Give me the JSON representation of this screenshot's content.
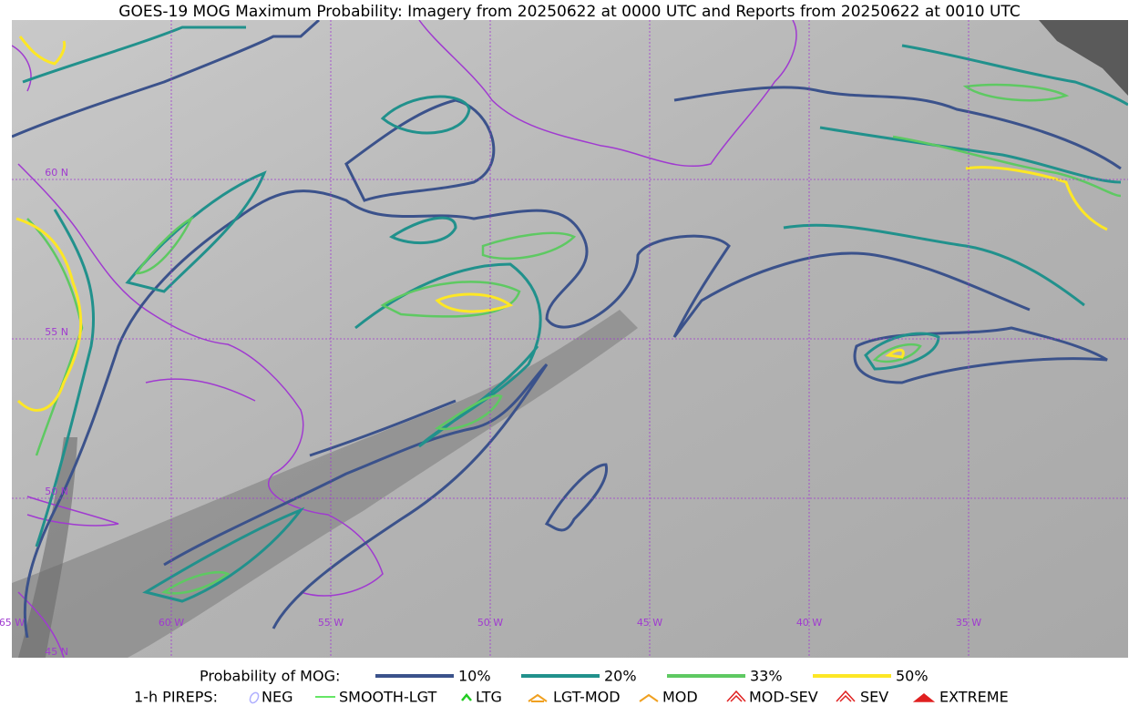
{
  "header": {
    "title": "GOES-19 MOG Maximum Probability: Imagery from 20250622 at 0000 UTC and Reports from 20250622 at 0010 UTC"
  },
  "map": {
    "lat_labels": [
      "60 N",
      "55 N",
      "50 N",
      "45 N"
    ],
    "lon_labels": [
      "65 W",
      "60 W",
      "55 W",
      "50 W",
      "45 W",
      "40 W",
      "35 W"
    ]
  },
  "legend": {
    "mog": {
      "label": "Probability of MOG:",
      "items": [
        {
          "label": "10%",
          "color": "#3b528b"
        },
        {
          "label": "20%",
          "color": "#21918c"
        },
        {
          "label": "33%",
          "color": "#5ec962"
        },
        {
          "label": "50%",
          "color": "#fde725"
        }
      ]
    },
    "pireps": {
      "label": "1-h PIREPS:",
      "items": [
        "NEG",
        "SMOOTH-LGT",
        "LTG",
        "LGT-MOD",
        "MOD",
        "MOD-SEV",
        "SEV",
        "EXTREME"
      ]
    }
  }
}
